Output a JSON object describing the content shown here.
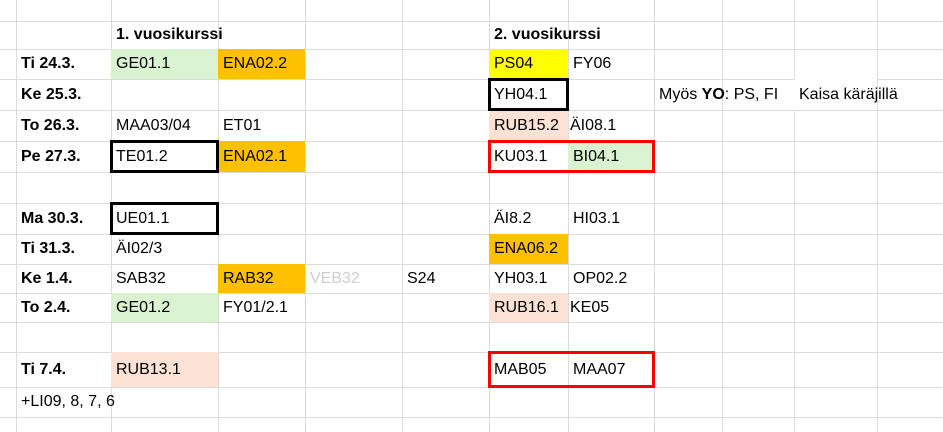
{
  "headers": {
    "year1": "1. vuosikurssi",
    "year2": "2. vuosikurssi"
  },
  "rows": {
    "r1": {
      "day": "Ti 24.3.",
      "a": "GE01.1",
      "b": "ENA02.2",
      "f": "PS04",
      "g": "FY06"
    },
    "r2": {
      "day": "Ke 25.3.",
      "f": "YH04.1",
      "note_prefix": "Myös ",
      "note_bold": "YO",
      "note_rest": ": PS, FI",
      "note2": "Kaisa käräjillä"
    },
    "r3": {
      "day": "To 26.3.",
      "a": "MAA03/04",
      "b": "ET01",
      "f": "RUB15.2",
      "g": "ÄI08.1"
    },
    "r4": {
      "day": "Pe 27.3.",
      "a": "TE01.2",
      "b": "ENA02.1",
      "f": "KU03.1",
      "g": "BI04.1"
    },
    "r6": {
      "day": "Ma 30.3.",
      "a": "UE01.1",
      "f": "ÄI8.2",
      "g": "HI03.1"
    },
    "r7": {
      "day": "Ti 31.3.",
      "a": "ÄI02/3",
      "f": "ENA06.2"
    },
    "r8": {
      "day": "Ke 1.4.",
      "a": "SAB32",
      "b": "RAB32",
      "c": "VEB32",
      "d": "S24",
      "f": "YH03.1",
      "g": "OP02.2"
    },
    "r9": {
      "day": "To 2.4.",
      "a": "GE01.2",
      "b": "FY01/2.1",
      "f": "RUB16.1",
      "g": "KE05"
    },
    "r11": {
      "day": "Ti 7.4.",
      "a": "RUB13.1",
      "f": "MAB05",
      "g": "MAA07"
    },
    "r12": {
      "day": "+LI09, 8, 7, 6"
    }
  },
  "colors": {
    "green": "#d9f2d0",
    "orange": "#ffc000",
    "yellow": "#ffff00",
    "peach": "#fbe2d5",
    "highlight_border": "#ff0000",
    "box_border": "#000000"
  }
}
